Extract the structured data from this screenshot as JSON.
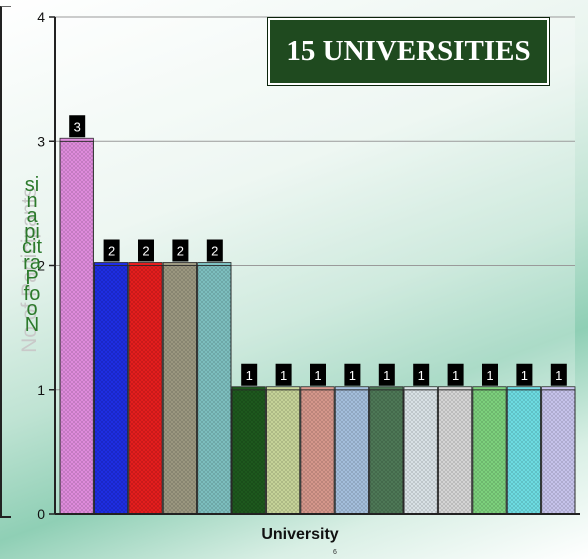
{
  "chart_data": {
    "type": "bar",
    "title": "15 UNIVERSITIES",
    "xlabel": "University",
    "ylabel": "No of Participants",
    "ylim": [
      0,
      4
    ],
    "yticks": [
      0,
      1,
      2,
      3,
      4
    ],
    "grid": true,
    "values": [
      3,
      2,
      2,
      2,
      2,
      1,
      1,
      1,
      1,
      1,
      1,
      1,
      1,
      1,
      1
    ],
    "data_labels": [
      "3",
      "2",
      "2",
      "2",
      "2",
      "1",
      "1",
      "1",
      "1",
      "1",
      "1",
      "1",
      "1",
      "1",
      "1"
    ],
    "bar_colors": [
      "#e38ee0",
      "#1f2ee6",
      "#e81e1e",
      "#9e9a82",
      "#7fc2c2",
      "#1e5a1e",
      "#c9d79b",
      "#d99a8e",
      "#a7c2e0",
      "#4f7a58",
      "#dde6ea",
      "#d9d9d9",
      "#7fd47f",
      "#6fe0e6",
      "#cac7f0"
    ]
  },
  "ylabel_stack": "sinapicitraP fo oN",
  "footnote": "6"
}
